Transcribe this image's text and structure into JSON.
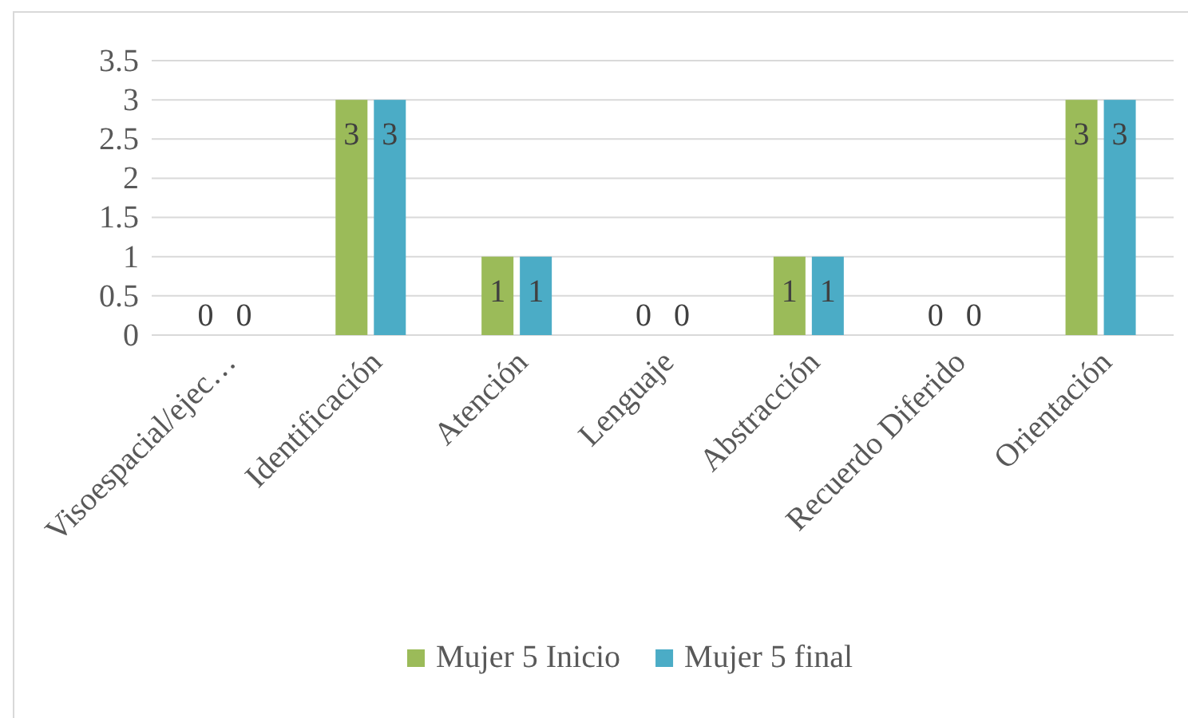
{
  "chart_data": {
    "type": "bar",
    "categories": [
      "Visoespacial/ejec…",
      "Identificación",
      "Atención",
      "Lenguaje",
      "Abstracción",
      "Recuerdo Diferido",
      "Orientación"
    ],
    "series": [
      {
        "name": "Mujer 5 Inicio",
        "color": "#9bbb59",
        "values": [
          0,
          3,
          1,
          0,
          1,
          0,
          3
        ]
      },
      {
        "name": "Mujer 5 final",
        "color": "#4bacc6",
        "values": [
          0,
          3,
          1,
          0,
          1,
          0,
          3
        ]
      }
    ],
    "ylim": [
      0,
      3.5
    ],
    "yticks": [
      0,
      0.5,
      1,
      1.5,
      2,
      2.5,
      3,
      3.5
    ],
    "grid": "y",
    "legend": "bottom",
    "data_labels": true
  }
}
